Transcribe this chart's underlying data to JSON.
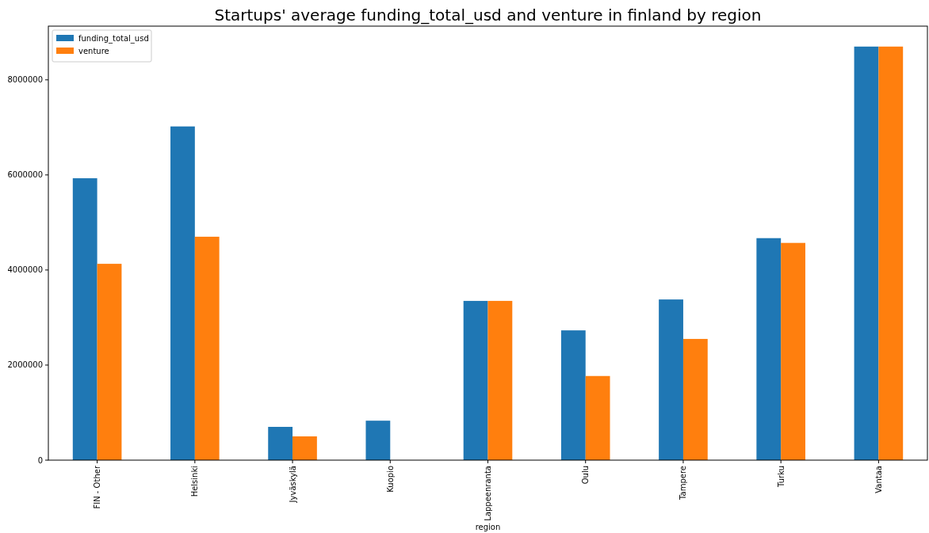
{
  "chart_data": {
    "type": "bar",
    "title": "Startups' average funding_total_usd and venture in  finland by region",
    "xlabel": "region",
    "categories": [
      "FIN - Other",
      "Helsinki",
      "Jyväskylä",
      "Kuopio",
      "Lappeenranta",
      "Oulu",
      "Tampere",
      "Turku",
      "Vantaa"
    ],
    "series": [
      {
        "name": "funding_total_usd",
        "color": "#1f77b4",
        "values": [
          5930000,
          7020000,
          700000,
          830000,
          3350000,
          2730000,
          3380000,
          4670000,
          8700000
        ]
      },
      {
        "name": "venture",
        "color": "#ff7f0e",
        "values": [
          4130000,
          4700000,
          500000,
          0,
          3350000,
          1770000,
          2550000,
          4570000,
          8700000
        ]
      }
    ],
    "ylim": [
      0,
      9130000
    ],
    "yticks": [
      0,
      2000000,
      4000000,
      6000000,
      8000000
    ],
    "legend": "top left",
    "grid": false
  }
}
